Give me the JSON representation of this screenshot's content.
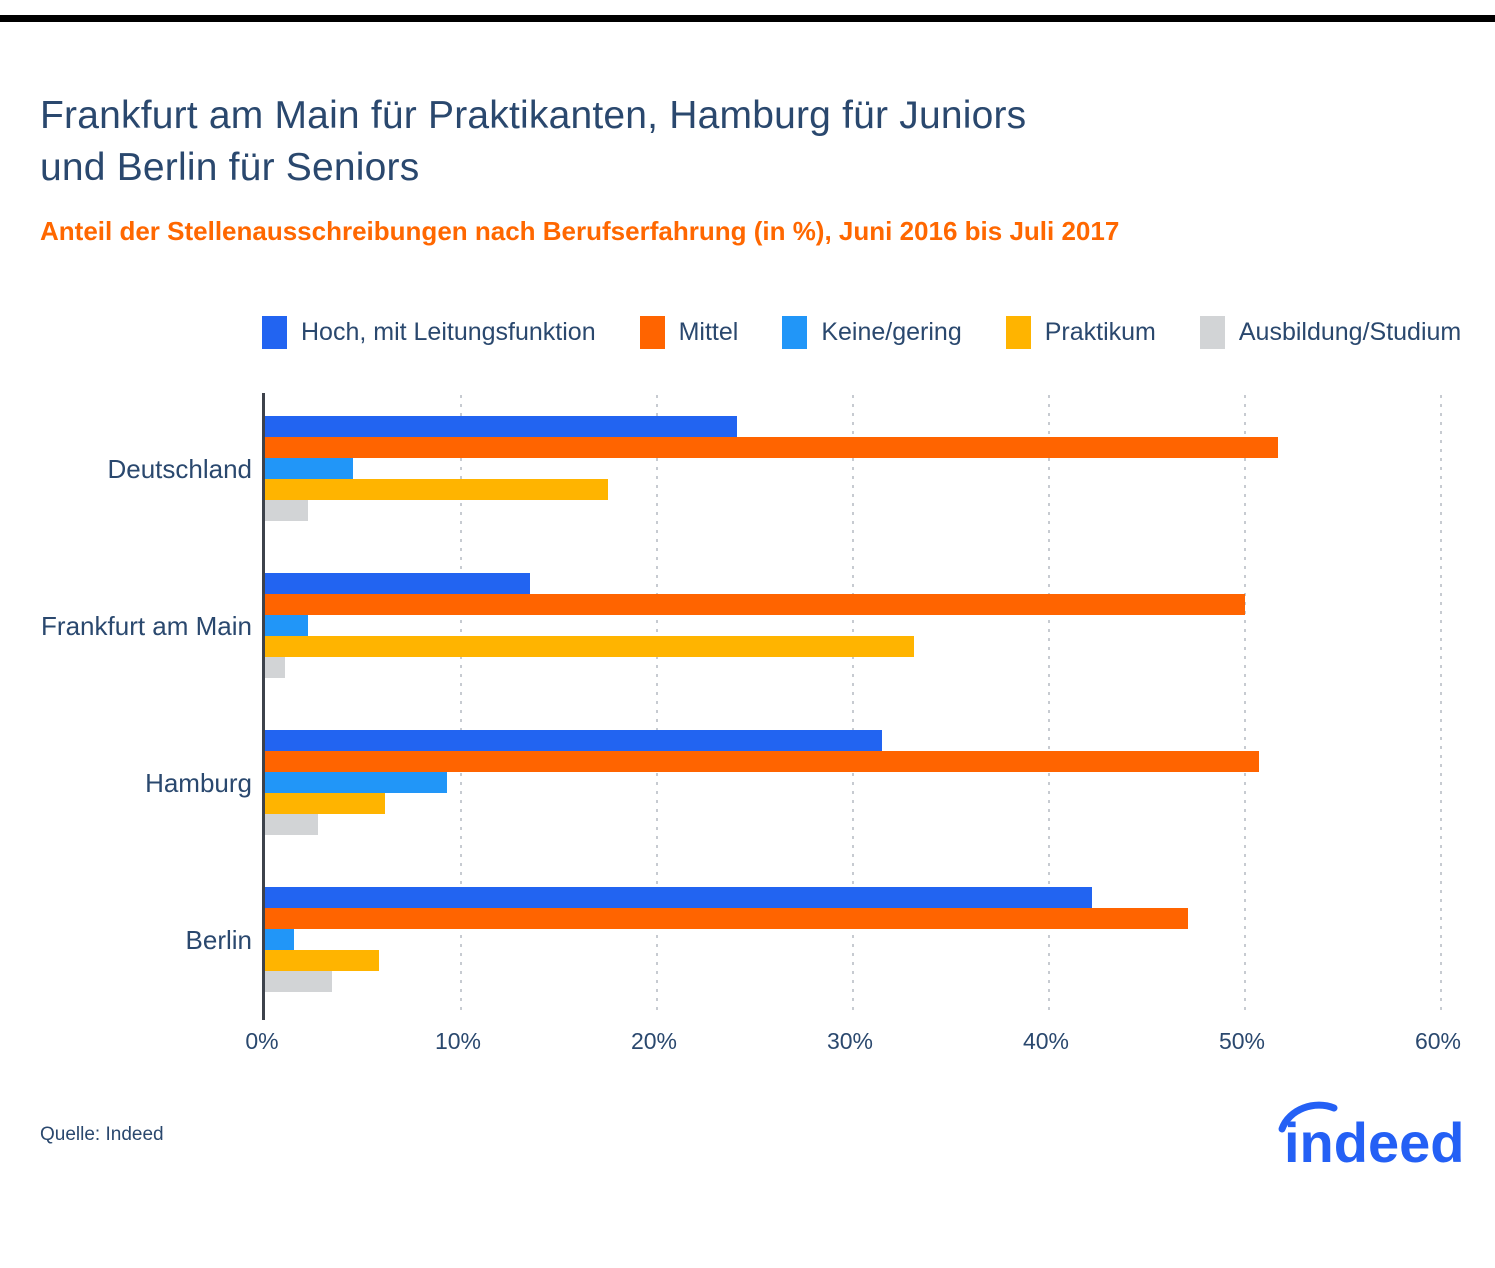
{
  "header": {
    "title_line1": "Frankfurt am Main für Praktikanten, Hamburg für Juniors",
    "title_line2": "und Berlin für Seniors",
    "subtitle": "Anteil der Stellenausschreibungen nach Berufserfahrung (in %), Juni 2016 bis Juli 2017"
  },
  "chart_data": {
    "type": "bar",
    "orientation": "horizontal",
    "title": "Frankfurt am Main für Praktikanten, Hamburg für Juniors und Berlin für Seniors",
    "subtitle": "Anteil der Stellenausschreibungen nach Berufserfahrung (in %), Juni 2016 bis Juli 2017",
    "categories": [
      "Deutschland",
      "Frankfurt am Main",
      "Hamburg",
      "Berlin"
    ],
    "series": [
      {
        "name": "Hoch, mit Leitungsfunktion",
        "color": "#2264F1",
        "values": [
          24.1,
          13.5,
          31.5,
          42.2
        ]
      },
      {
        "name": "Mittel",
        "color": "#FF6400",
        "values": [
          51.7,
          50.0,
          50.7,
          47.1
        ]
      },
      {
        "name": "Keine/gering",
        "color": "#2196F8",
        "values": [
          4.5,
          2.2,
          9.3,
          1.5
        ]
      },
      {
        "name": "Praktikum",
        "color": "#FFB400",
        "values": [
          17.5,
          33.1,
          6.1,
          5.8
        ]
      },
      {
        "name": "Ausbildung/Studium",
        "color": "#D2D4D6",
        "values": [
          2.2,
          1.0,
          2.7,
          3.4
        ]
      }
    ],
    "xlabel": "",
    "ylabel": "",
    "x_ticks": [
      "0%",
      "10%",
      "20%",
      "30%",
      "40%",
      "50%",
      "60%"
    ],
    "xlim": [
      0,
      60
    ],
    "grid": "vertical-dotted",
    "legend_position": "top"
  },
  "footer": {
    "source": "Quelle: Indeed",
    "logo_text": "indeed"
  },
  "colors": {
    "accent_bar": "#000000",
    "title_text": "#2A486E",
    "subtitle_text": "#FF6700",
    "axis_line": "#3D424B",
    "gridline": "#C7CBD1",
    "logo_blue": "#2460F5"
  }
}
